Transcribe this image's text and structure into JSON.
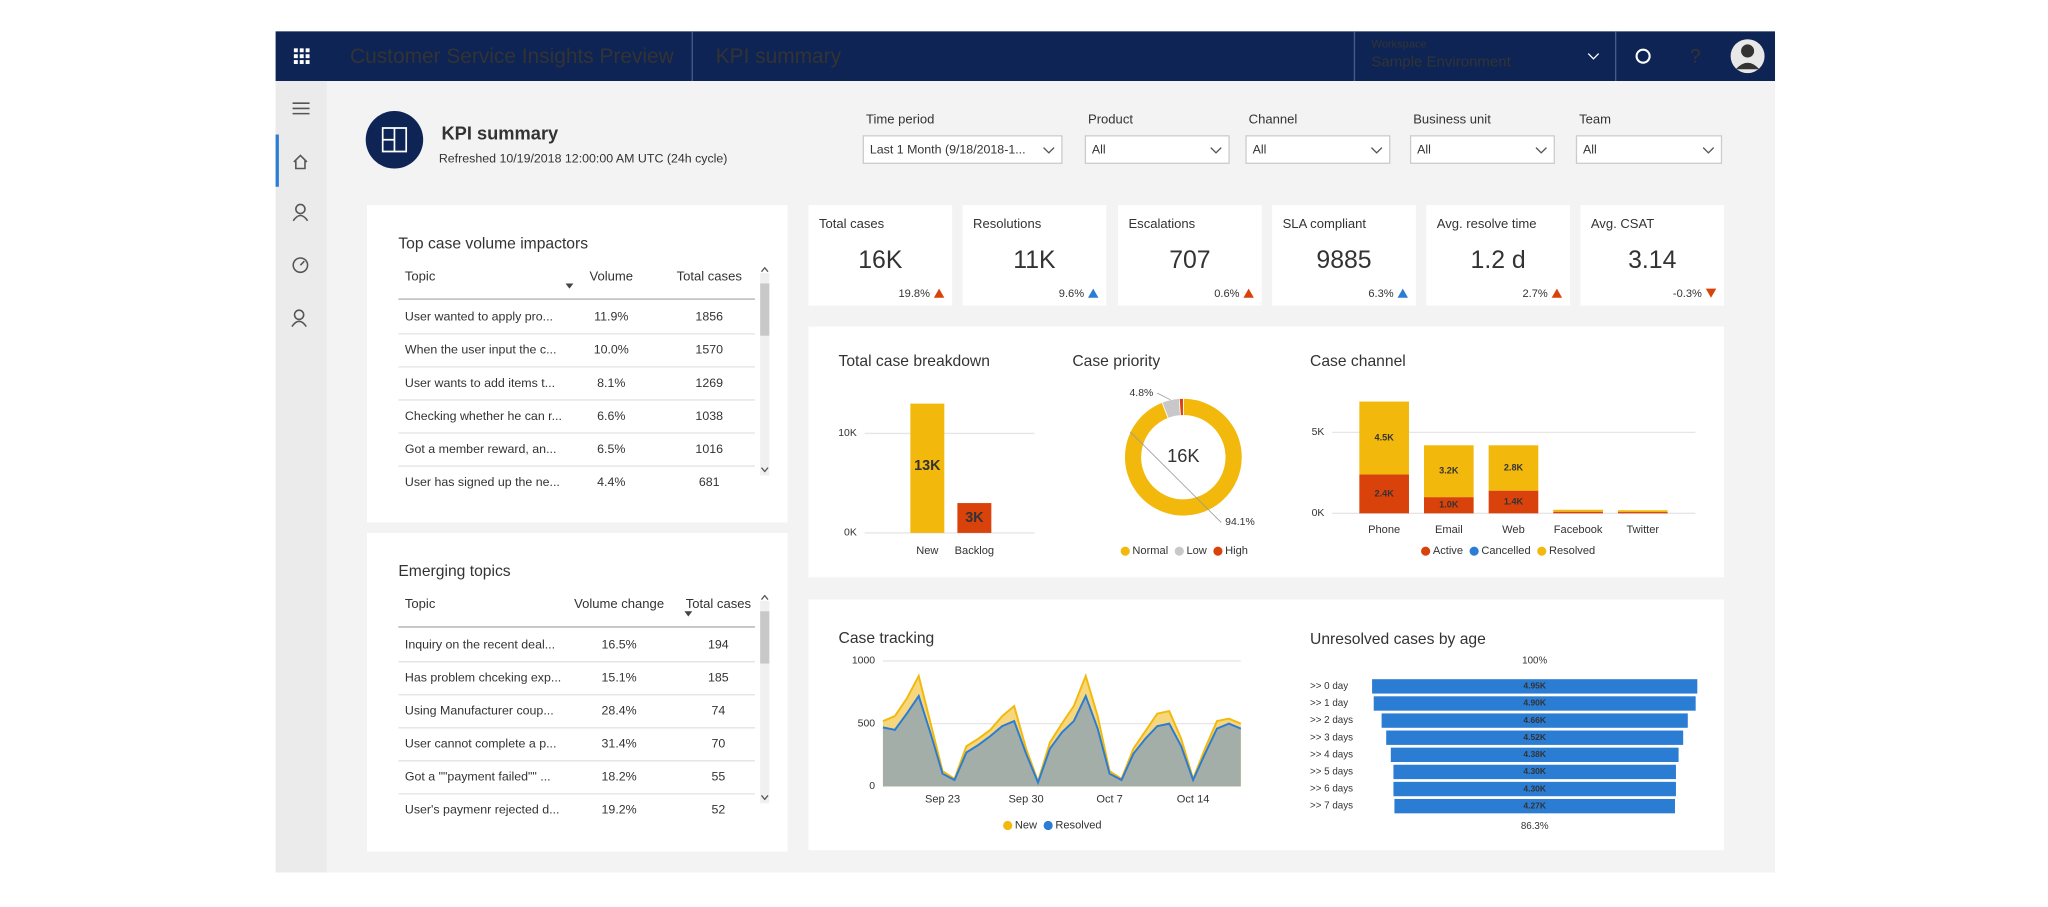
{
  "header": {
    "app_title": "Customer Service Insights Preview",
    "page_title": "KPI summary",
    "workspace_label": "Workspace",
    "workspace": "Sample Environment"
  },
  "summary": {
    "title": "KPI summary",
    "refreshed": "Refreshed 10/19/2018 12:00:00 AM UTC (24h cycle)"
  },
  "filters": [
    {
      "label": "Time period",
      "value": "Last 1 Month (9/18/2018-1..."
    },
    {
      "label": "Product",
      "value": "All"
    },
    {
      "label": "Channel",
      "value": "All"
    },
    {
      "label": "Business unit",
      "value": "All"
    },
    {
      "label": "Team",
      "value": "All"
    }
  ],
  "kpis": [
    {
      "label": "Total cases",
      "value": "16K",
      "change": "19.8%",
      "trend": "up",
      "color": "#d9420b"
    },
    {
      "label": "Resolutions",
      "value": "11K",
      "change": "9.6%",
      "trend": "up",
      "color": "#2b7cd3"
    },
    {
      "label": "Escalations",
      "value": "707",
      "change": "0.6%",
      "trend": "up",
      "color": "#d9420b"
    },
    {
      "label": "SLA compliant",
      "value": "9885",
      "change": "6.3%",
      "trend": "up",
      "color": "#2b7cd3"
    },
    {
      "label": "Avg. resolve time",
      "value": "1.2 d",
      "change": "2.7%",
      "trend": "up",
      "color": "#d9420b"
    },
    {
      "label": "Avg. CSAT",
      "value": "3.14",
      "change": "-0.3%",
      "trend": "down",
      "color": "#d9420b"
    }
  ],
  "tables": [
    {
      "title": "Top case volume impactors",
      "columns": [
        "Topic",
        "Volume",
        "Total cases"
      ],
      "rows": [
        [
          "User wanted to apply pro...",
          "11.9%",
          "1856"
        ],
        [
          "When the user input the c...",
          "10.0%",
          "1570"
        ],
        [
          "User wants to add items t...",
          "8.1%",
          "1269"
        ],
        [
          "Checking whether he can r...",
          "6.6%",
          "1038"
        ],
        [
          "Got a member reward, an...",
          "6.5%",
          "1016"
        ],
        [
          "User has signed up the ne...",
          "4.4%",
          "681"
        ]
      ]
    },
    {
      "title": "Emerging topics",
      "columns": [
        "Topic",
        "Volume change",
        "Total cases"
      ],
      "rows": [
        [
          "Inquiry on the recent deal...",
          "16.5%",
          "194"
        ],
        [
          "Has problem chceking exp...",
          "15.1%",
          "185"
        ],
        [
          "Using Manufacturer coup...",
          "28.4%",
          "74"
        ],
        [
          "User cannot complete a p...",
          "31.4%",
          "70"
        ],
        [
          "Got a \"\"payment failed\"\" ...",
          "18.2%",
          "55"
        ],
        [
          "User's paymenr rejected d...",
          "19.2%",
          "52"
        ]
      ]
    }
  ],
  "charts": [
    {
      "type": "bar",
      "title": "Total case breakdown",
      "categories": [
        "New",
        "Backlog"
      ],
      "values": [
        13000,
        3000
      ],
      "value_labels": [
        "13K",
        "3K"
      ],
      "colors": [
        "#f2b90c",
        "#d9420b"
      ],
      "ylim": [
        0,
        13000
      ],
      "yticks": [
        {
          "value": 0,
          "label": "0K"
        },
        {
          "value": 10000,
          "label": "10K"
        }
      ],
      "grid": true
    },
    {
      "type": "donut",
      "title": "Case priority",
      "center_label": "16K",
      "categories": [
        "Normal",
        "Low",
        "High"
      ],
      "values": [
        94.1,
        4.8,
        1.1
      ],
      "value_labels": [
        "94.1%",
        "4.8%",
        null
      ],
      "colors": [
        "#f2b90c",
        "#c8c8c8",
        "#d9420b"
      ]
    },
    {
      "type": "stacked_bar",
      "title": "Case channel",
      "categories": [
        "Phone",
        "Email",
        "Web",
        "Facebook",
        "Twitter"
      ],
      "series": [
        {
          "name": "Active",
          "color": "#d9420b",
          "values": [
            2400,
            1000,
            1400,
            100,
            80
          ],
          "value_labels": [
            "2.4K",
            "1.0K",
            "1.4K",
            null,
            null
          ]
        },
        {
          "name": "Cancelled",
          "color": "#2b7cd3",
          "values": [
            0,
            0,
            0,
            0,
            0
          ],
          "value_labels": [
            null,
            null,
            null,
            null,
            null
          ]
        },
        {
          "name": "Resolved",
          "color": "#f2b90c",
          "values": [
            4500,
            3200,
            2800,
            120,
            110
          ],
          "value_labels": [
            "4.5K",
            "3.2K",
            "2.8K",
            null,
            null
          ]
        }
      ],
      "ylim": [
        0,
        7000
      ],
      "yticks": [
        {
          "value": 0,
          "label": "0K"
        },
        {
          "value": 5000,
          "label": "5K"
        }
      ],
      "grid": true
    },
    {
      "type": "area",
      "title": "Case tracking",
      "categories": [
        null,
        null,
        null,
        null,
        null,
        "Sep 23",
        null,
        null,
        null,
        null,
        null,
        null,
        "Sep 30",
        null,
        null,
        null,
        null,
        null,
        null,
        "Oct 7",
        null,
        null,
        null,
        null,
        null,
        null,
        "Oct 14",
        null,
        null,
        null,
        null
      ],
      "series": [
        {
          "name": "New",
          "color": "#f2b90c",
          "values": [
            520,
            560,
            700,
            880,
            500,
            120,
            60,
            320,
            380,
            450,
            560,
            640,
            300,
            40,
            350,
            500,
            640,
            880,
            560,
            120,
            60,
            300,
            440,
            580,
            600,
            380,
            60,
            300,
            520,
            540,
            500
          ]
        },
        {
          "name": "Resolved",
          "color": "#2b7cd3",
          "values": [
            470,
            450,
            580,
            720,
            420,
            100,
            50,
            270,
            330,
            400,
            480,
            520,
            260,
            30,
            300,
            430,
            520,
            720,
            460,
            100,
            50,
            260,
            380,
            480,
            500,
            320,
            50,
            260,
            460,
            500,
            460
          ]
        }
      ],
      "ylim": [
        0,
        1000
      ],
      "yticks": [
        0,
        500,
        1000
      ],
      "grid": true
    },
    {
      "type": "funnel",
      "title": "Unresolved cases by age",
      "top_label": "100%",
      "bottom_label": "86.3%",
      "color": "#2b7cd3",
      "categories": [
        ">> 0 day",
        ">> 1 day",
        ">> 2 days",
        ">> 3 days",
        ">> 4 days",
        ">> 5 days",
        ">> 6 days",
        ">> 7 days"
      ],
      "values": [
        4950,
        4900,
        4660,
        4520,
        4380,
        4300,
        4300,
        4270
      ],
      "value_labels": [
        "4.95K",
        "4.90K",
        "4.66K",
        "4.52K",
        "4.38K",
        "4.30K",
        "4.30K",
        "4.27K"
      ]
    }
  ]
}
